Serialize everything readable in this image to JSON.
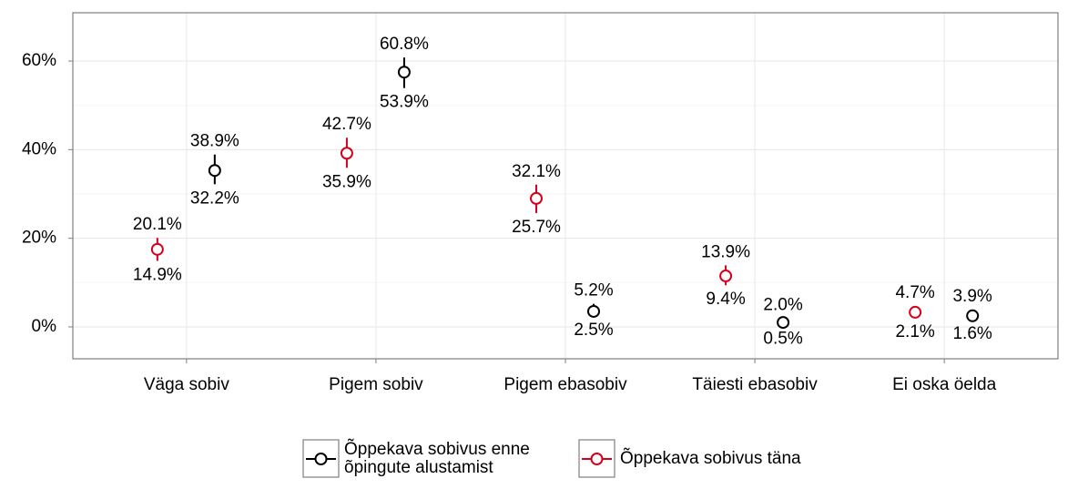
{
  "chart_data": {
    "type": "errorbar",
    "categories": [
      "Väga sobiv",
      "Pigem sobiv",
      "Pigem ebasobiv",
      "Täiesti ebasobiv",
      "Ei oska öelda"
    ],
    "series": [
      {
        "name": "Õppekava sobivus enne õpingute alustamist",
        "color": "#000000",
        "values": [
          35.3,
          57.5,
          3.5,
          1.0,
          2.5
        ],
        "upper": [
          38.9,
          60.8,
          5.2,
          2.0,
          3.9
        ],
        "lower": [
          32.2,
          53.9,
          2.5,
          0.5,
          1.6
        ],
        "upper_labels": [
          "38.9%",
          "60.8%",
          "5.2%",
          "2.0%",
          "3.9%"
        ],
        "lower_labels": [
          "32.2%",
          "53.9%",
          "2.5%",
          "0.5%",
          "1.6%"
        ]
      },
      {
        "name": "Õppekava sobivus täna",
        "color": "#d7001c",
        "values": [
          17.5,
          39.2,
          29.0,
          11.5,
          3.3
        ],
        "upper": [
          20.1,
          42.7,
          32.1,
          13.9,
          4.7
        ],
        "lower": [
          14.9,
          35.9,
          25.7,
          9.4,
          2.1
        ],
        "upper_labels": [
          "20.1%",
          "42.7%",
          "32.1%",
          "13.9%",
          "4.7%"
        ],
        "lower_labels": [
          "14.9%",
          "35.9%",
          "25.7%",
          "9.4%",
          "2.1%"
        ]
      }
    ],
    "ylim": [
      -7.2,
      70.9
    ],
    "yticks": [
      {
        "value": 0,
        "label": "0%"
      },
      {
        "value": 20,
        "label": "20%"
      },
      {
        "value": 40,
        "label": "40%"
      },
      {
        "value": 60,
        "label": "60%"
      }
    ],
    "grid": true,
    "legend": "bottom"
  }
}
